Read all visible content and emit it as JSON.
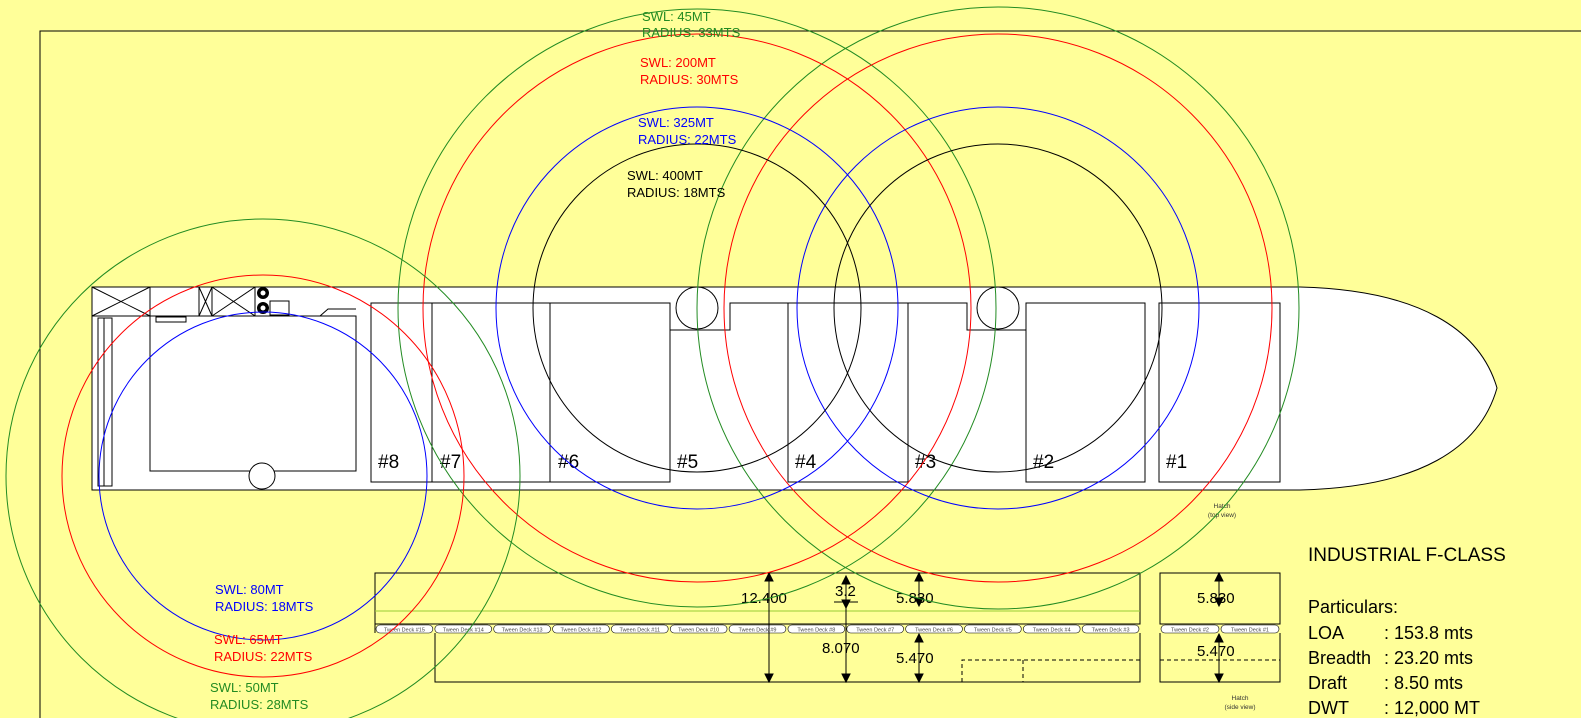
{
  "colors": {
    "background": "#ffff99",
    "green": "#228b22",
    "red": "#ff0000",
    "blue": "#0000ff",
    "black": "#000000",
    "hull": "#ffffff"
  },
  "crane_labels": {
    "fwd_45": {
      "swl": "SWL: 45MT",
      "radius": "RADIUS: 33MTS"
    },
    "fwd_200": {
      "swl": "SWL: 200MT",
      "radius": "RADIUS: 30MTS"
    },
    "fwd_325": {
      "swl": "SWL: 325MT",
      "radius": "RADIUS: 22MTS"
    },
    "fwd_400": {
      "swl": "SWL: 400MT",
      "radius": "RADIUS: 18MTS"
    },
    "aft_80": {
      "swl": "SWL: 80MT",
      "radius": "RADIUS: 18MTS"
    },
    "aft_65": {
      "swl": "SWL: 65MT",
      "radius": "RADIUS: 22MTS"
    },
    "aft_50": {
      "swl": "SWL: 50MT",
      "radius": "RADIUS: 28MTS"
    }
  },
  "holds": [
    "#8",
    "#7",
    "#6",
    "#5",
    "#4",
    "#3",
    "#2",
    "#1"
  ],
  "hatch_top_caption": [
    "Hatch",
    "(top view)"
  ],
  "hatch_side_caption": [
    "Hatch",
    "(side view)"
  ],
  "tween_decks": [
    "Tween Deck #15",
    "Tween Deck #14",
    "Tween Deck #13",
    "Tween Deck #12",
    "Tween Deck #11",
    "Tween Deck #10",
    "Tween Deck #9",
    "Tween Deck #8",
    "Tween Deck #7",
    "Tween Deck #6",
    "Tween Deck #5",
    "Tween Deck #4",
    "Tween Deck #3"
  ],
  "tween_decks_fwd": [
    "Tween Deck #2",
    "Tween Deck #1"
  ],
  "dimensions": {
    "total_depth": "12.400",
    "tween_gap": "3.2",
    "upper_height": "5.830",
    "lower_depth": "8.070",
    "lower_height": "5.470",
    "fwd_upper": "5.830",
    "fwd_lower": "5.470"
  },
  "vessel": {
    "class_name": "INDUSTRIAL F-CLASS",
    "particulars_heading": "Particulars:",
    "particulars": [
      {
        "label": "LOA",
        "value": ": 153.8 mts"
      },
      {
        "label": "Breadth",
        "value": ": 23.20 mts"
      },
      {
        "label": "Draft",
        "value": ": 8.50 mts"
      },
      {
        "label": "DWT",
        "value": ": 12,000 MT"
      }
    ]
  }
}
